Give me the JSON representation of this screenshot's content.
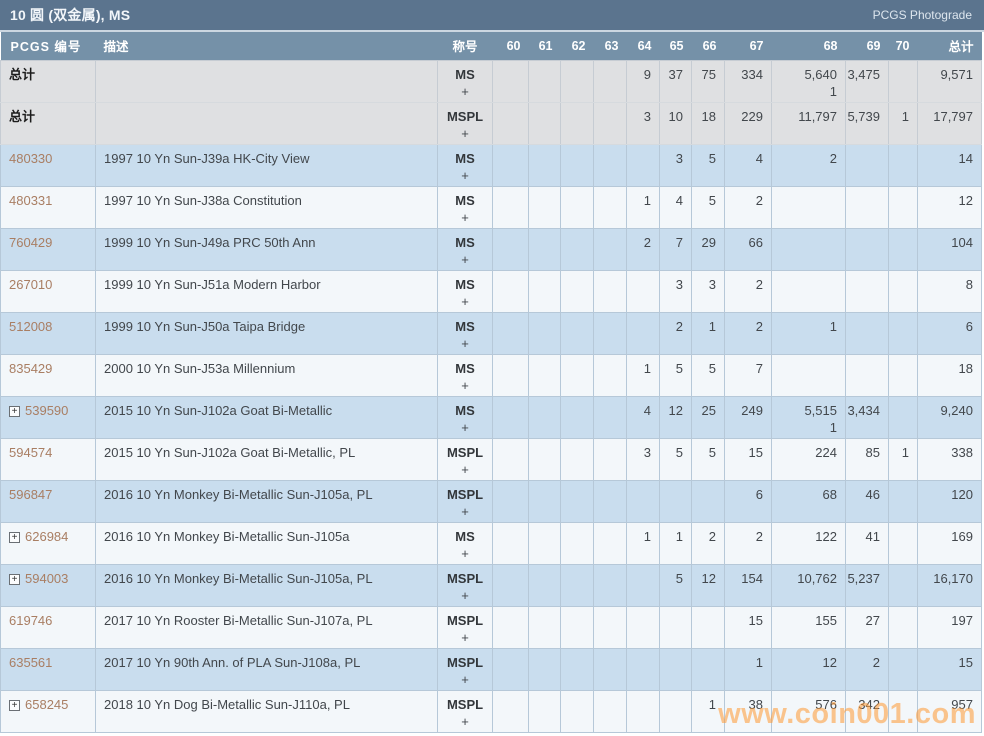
{
  "title_bar": {
    "title": "10 圆 (双金属), MS",
    "right_label": "PCGS Photograde"
  },
  "table": {
    "columns": {
      "pcgs": "PCGS 编号",
      "desc": "描述",
      "designation": "称号",
      "grades": [
        "60",
        "61",
        "62",
        "63",
        "64",
        "65",
        "66",
        "67",
        "68",
        "69",
        "70"
      ],
      "total": "总计"
    },
    "rows": [
      {
        "kind": "summary",
        "pcgs": "总计",
        "expandable": false,
        "desc": "",
        "designation": "MS",
        "designation_suffix": "+",
        "grades": {
          "64": "9",
          "65": "37",
          "66": "75",
          "67": "334",
          "68": "5,640",
          "69": "3,475"
        },
        "grade_sub": {
          "68": "1"
        },
        "total": "9,571"
      },
      {
        "kind": "summary",
        "pcgs": "总计",
        "expandable": false,
        "desc": "",
        "designation": "MSPL",
        "designation_suffix": "+",
        "grades": {
          "64": "3",
          "65": "10",
          "66": "18",
          "67": "229",
          "68": "11,797",
          "69": "5,739",
          "70": "1"
        },
        "total": "17,797"
      },
      {
        "kind": "data",
        "pcgs": "480330",
        "expandable": false,
        "desc": "1997 10 Yn Sun-J39a HK-City View",
        "designation": "MS",
        "designation_suffix": "+",
        "grades": {
          "65": "3",
          "66": "5",
          "67": "4",
          "68": "2"
        },
        "total": "14"
      },
      {
        "kind": "data",
        "pcgs": "480331",
        "expandable": false,
        "desc": "1997 10 Yn Sun-J38a Constitution",
        "designation": "MS",
        "designation_suffix": "+",
        "grades": {
          "64": "1",
          "65": "4",
          "66": "5",
          "67": "2"
        },
        "total": "12"
      },
      {
        "kind": "data",
        "pcgs": "760429",
        "expandable": false,
        "desc": "1999 10 Yn Sun-J49a PRC 50th Ann",
        "designation": "MS",
        "designation_suffix": "+",
        "grades": {
          "64": "2",
          "65": "7",
          "66": "29",
          "67": "66"
        },
        "total": "104"
      },
      {
        "kind": "data",
        "pcgs": "267010",
        "expandable": false,
        "desc": "1999 10 Yn Sun-J51a Modern Harbor",
        "designation": "MS",
        "designation_suffix": "+",
        "grades": {
          "65": "3",
          "66": "3",
          "67": "2"
        },
        "total": "8"
      },
      {
        "kind": "data",
        "pcgs": "512008",
        "expandable": false,
        "desc": "1999 10 Yn Sun-J50a Taipa Bridge",
        "designation": "MS",
        "designation_suffix": "+",
        "grades": {
          "65": "2",
          "66": "1",
          "67": "2",
          "68": "1"
        },
        "total": "6"
      },
      {
        "kind": "data",
        "pcgs": "835429",
        "expandable": false,
        "desc": "2000 10 Yn Sun-J53a Millennium",
        "designation": "MS",
        "designation_suffix": "+",
        "grades": {
          "64": "1",
          "65": "5",
          "66": "5",
          "67": "7"
        },
        "total": "18"
      },
      {
        "kind": "data",
        "pcgs": "539590",
        "expandable": true,
        "desc": "2015 10 Yn Sun-J102a Goat Bi-Metallic",
        "designation": "MS",
        "designation_suffix": "+",
        "grades": {
          "64": "4",
          "65": "12",
          "66": "25",
          "67": "249",
          "68": "5,515",
          "69": "3,434"
        },
        "grade_sub": {
          "68": "1"
        },
        "total": "9,240"
      },
      {
        "kind": "data",
        "pcgs": "594574",
        "expandable": false,
        "desc": "2015 10 Yn Sun-J102a Goat Bi-Metallic, PL",
        "designation": "MSPL",
        "designation_suffix": "+",
        "grades": {
          "64": "3",
          "65": "5",
          "66": "5",
          "67": "15",
          "68": "224",
          "69": "85",
          "70": "1"
        },
        "total": "338"
      },
      {
        "kind": "data",
        "pcgs": "596847",
        "expandable": false,
        "desc": "2016 10 Yn Monkey Bi-Metallic Sun-J105a, PL",
        "designation": "MSPL",
        "designation_suffix": "+",
        "grades": {
          "67": "6",
          "68": "68",
          "69": "46"
        },
        "total": "120"
      },
      {
        "kind": "data",
        "pcgs": "626984",
        "expandable": true,
        "desc": "2016 10 Yn Monkey Bi-Metallic Sun-J105a",
        "designation": "MS",
        "designation_suffix": "+",
        "grades": {
          "64": "1",
          "65": "1",
          "66": "2",
          "67": "2",
          "68": "122",
          "69": "41"
        },
        "total": "169"
      },
      {
        "kind": "data",
        "pcgs": "594003",
        "expandable": true,
        "desc": "2016 10 Yn Monkey Bi-Metallic Sun-J105a, PL",
        "designation": "MSPL",
        "designation_suffix": "+",
        "grades": {
          "65": "5",
          "66": "12",
          "67": "154",
          "68": "10,762",
          "69": "5,237"
        },
        "total": "16,170"
      },
      {
        "kind": "data",
        "pcgs": "619746",
        "expandable": false,
        "desc": "2017 10 Yn Rooster Bi-Metallic Sun-J107a, PL",
        "designation": "MSPL",
        "designation_suffix": "+",
        "grades": {
          "67": "15",
          "68": "155",
          "69": "27"
        },
        "total": "197"
      },
      {
        "kind": "data",
        "pcgs": "635561",
        "expandable": false,
        "desc": "2017 10 Yn 90th Ann. of PLA Sun-J108a, PL",
        "designation": "MSPL",
        "designation_suffix": "+",
        "grades": {
          "67": "1",
          "68": "12",
          "69": "2"
        },
        "total": "15"
      },
      {
        "kind": "data",
        "pcgs": "658245",
        "expandable": true,
        "desc": "2018 10 Yn Dog Bi-Metallic Sun-J110a, PL",
        "designation": "MSPL",
        "designation_suffix": "+",
        "grades": {
          "66": "1",
          "67": "38",
          "68": "576",
          "69": "342"
        },
        "total": "957"
      }
    ]
  },
  "watermark": {
    "text": "www.coin001.com"
  },
  "colors": {
    "title_bar_bg": "#5b748e",
    "header_row_bg": "#7591a8",
    "row_blue": "#c9ddee",
    "row_light": "#f3f7fa",
    "row_summary_gray": "#dfe0e2",
    "pcgs_number": "#a97e63",
    "watermark": "#ff9933"
  }
}
